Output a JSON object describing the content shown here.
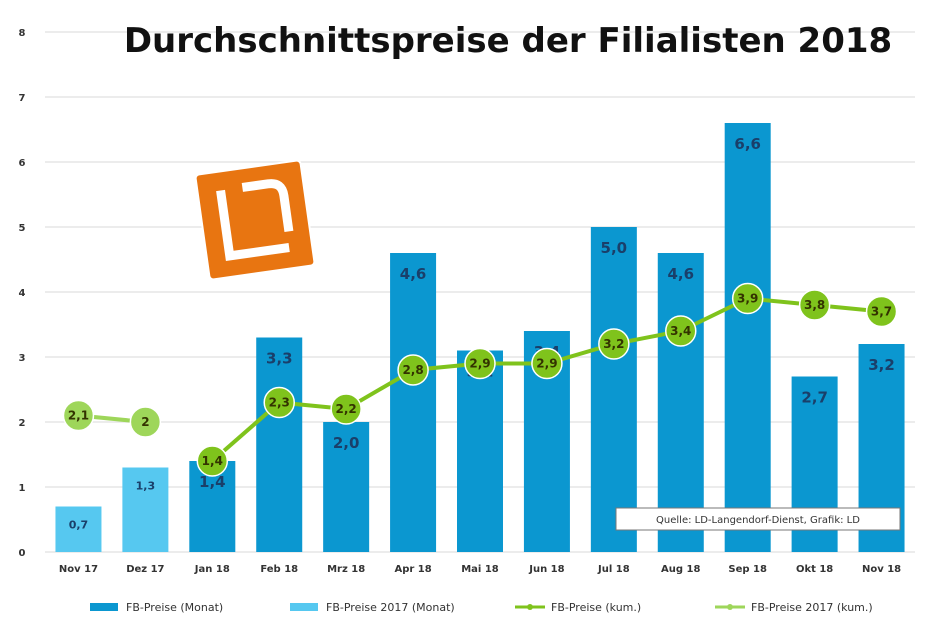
{
  "chart_data": {
    "type": "bar",
    "title": "Durchschnittspreise der Filialisten 2018",
    "categories": [
      "Nov 17",
      "Dez 17",
      "Jan 18",
      "Feb 18",
      "Mrz 18",
      "Apr 18",
      "Mai 18",
      "Jun 18",
      "Jul 18",
      "Aug 18",
      "Sep 18",
      "Okt 18",
      "Nov 18"
    ],
    "yticks": [
      "0",
      "1",
      "2",
      "3",
      "4",
      "5",
      "6",
      "7",
      "8"
    ],
    "ylim": [
      0,
      8
    ],
    "grid": true,
    "legend_position": "bottom",
    "series": [
      {
        "name": "FB-Preise (Monat)",
        "kind": "bar",
        "color": "#0b97d0",
        "values": [
          null,
          null,
          1.4,
          3.3,
          2.0,
          4.6,
          3.1,
          3.4,
          5.0,
          4.6,
          6.6,
          2.7,
          3.2
        ],
        "labels": [
          "",
          "",
          "1,4",
          "3,3",
          "2,0",
          "4,6",
          "3,1",
          "3,4",
          "5,0",
          "4,6",
          "6,6",
          "2,7",
          "3,2"
        ]
      },
      {
        "name": "FB-Preise 2017 (Monat)",
        "kind": "bar",
        "color": "#56c8f0",
        "values": [
          0.7,
          1.3,
          null,
          null,
          null,
          null,
          null,
          null,
          null,
          null,
          null,
          null,
          null
        ],
        "labels": [
          "0,7",
          "1,3",
          "",
          "",
          "",
          "",
          "",
          "",
          "",
          "",
          "",
          "",
          ""
        ]
      },
      {
        "name": "FB-Preise (kum.)",
        "kind": "line",
        "color": "#7fc31c",
        "values": [
          null,
          null,
          1.4,
          2.3,
          2.2,
          2.8,
          2.9,
          2.9,
          3.2,
          3.4,
          3.9,
          3.8,
          3.7
        ],
        "labels": [
          "",
          "",
          "1,4",
          "2,3",
          "2,2",
          "2,8",
          "2,9",
          "2,9",
          "3,2",
          "3,4",
          "3,9",
          "3,8",
          "3,7"
        ]
      },
      {
        "name": "FB-Preise 2017 (kum.)",
        "kind": "line",
        "color": "#9ed65a",
        "values": [
          2.1,
          2.0,
          null,
          null,
          null,
          null,
          null,
          null,
          null,
          null,
          null,
          null,
          null
        ],
        "labels": [
          "2,1",
          "2",
          "",
          "",
          "",
          "",
          "",
          "",
          "",
          "",
          "",
          "",
          ""
        ]
      }
    ],
    "source": "Quelle: LD-Langendorf-Dienst, Grafik: LD"
  },
  "colors": {
    "bar_dark": "#0b97d0",
    "bar_light": "#56c8f0",
    "line": "#7fc31c",
    "logo_orange": "#e87511",
    "grid": "#e6e6e6"
  },
  "logo": {
    "text": "LD",
    "icon": "ld-logo-icon"
  }
}
